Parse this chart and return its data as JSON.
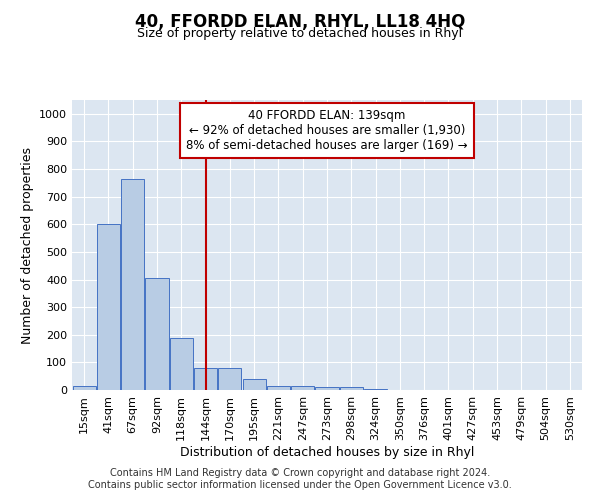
{
  "title": "40, FFORDD ELAN, RHYL, LL18 4HQ",
  "subtitle": "Size of property relative to detached houses in Rhyl",
  "xlabel": "Distribution of detached houses by size in Rhyl",
  "ylabel": "Number of detached properties",
  "categories": [
    "15sqm",
    "41sqm",
    "67sqm",
    "92sqm",
    "118sqm",
    "144sqm",
    "170sqm",
    "195sqm",
    "221sqm",
    "247sqm",
    "273sqm",
    "298sqm",
    "324sqm",
    "350sqm",
    "376sqm",
    "401sqm",
    "427sqm",
    "453sqm",
    "479sqm",
    "504sqm",
    "530sqm"
  ],
  "values": [
    15,
    600,
    765,
    405,
    190,
    78,
    78,
    40,
    15,
    15,
    10,
    10,
    5,
    0,
    0,
    0,
    0,
    0,
    0,
    0,
    0
  ],
  "bar_color": "#b8cce4",
  "bar_edge_color": "#4472c4",
  "vline_x": 5,
  "vline_color": "#c00000",
  "annotation_text": "40 FFORDD ELAN: 139sqm\n← 92% of detached houses are smaller (1,930)\n8% of semi-detached houses are larger (169) →",
  "annotation_box_color": "#ffffff",
  "annotation_box_edge_color": "#c00000",
  "ylim": [
    0,
    1050
  ],
  "yticks": [
    0,
    100,
    200,
    300,
    400,
    500,
    600,
    700,
    800,
    900,
    1000
  ],
  "footer": "Contains HM Land Registry data © Crown copyright and database right 2024.\nContains public sector information licensed under the Open Government Licence v3.0.",
  "plot_bg_color": "#dce6f1",
  "title_fontsize": 12,
  "subtitle_fontsize": 9,
  "tick_fontsize": 8,
  "label_fontsize": 9,
  "annotation_fontsize": 8.5,
  "footer_fontsize": 7
}
